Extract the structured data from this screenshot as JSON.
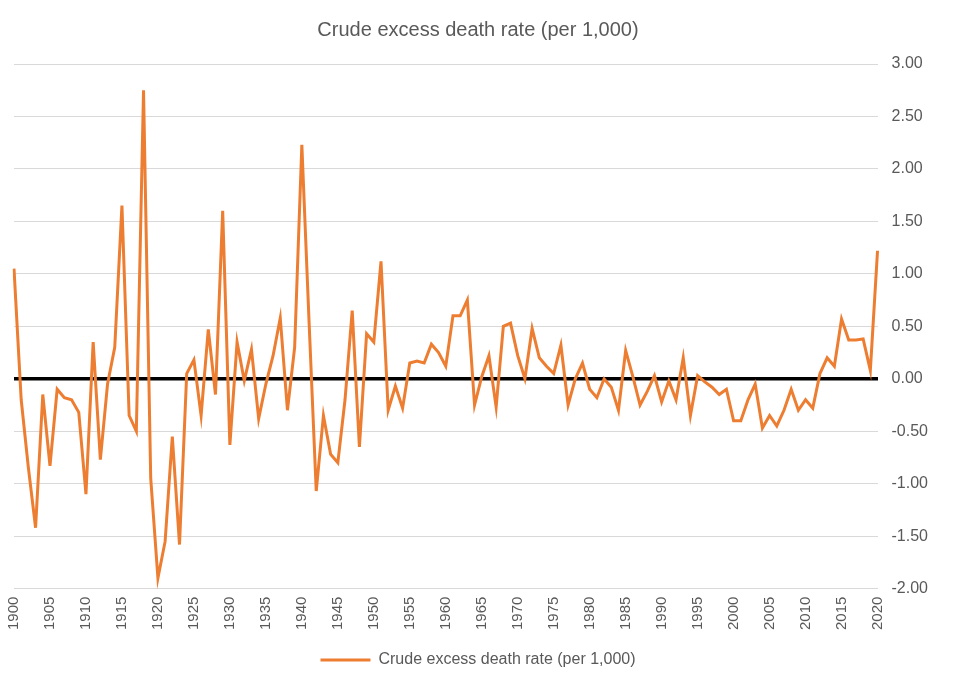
{
  "chart_data": {
    "type": "line",
    "title": "Crude excess death rate (per 1,000)",
    "categories": [
      "1900",
      null,
      null,
      null,
      null,
      "1905",
      null,
      null,
      null,
      null,
      "1910",
      null,
      null,
      null,
      null,
      "1915",
      null,
      null,
      null,
      null,
      "1920",
      null,
      null,
      null,
      null,
      "1925",
      null,
      null,
      null,
      null,
      "1930",
      null,
      null,
      null,
      null,
      "1935",
      null,
      null,
      null,
      null,
      "1940",
      null,
      null,
      null,
      null,
      "1945",
      null,
      null,
      null,
      null,
      "1950",
      null,
      null,
      null,
      null,
      "1955",
      null,
      null,
      null,
      null,
      "1960",
      null,
      null,
      null,
      null,
      "1965",
      null,
      null,
      null,
      null,
      "1970",
      null,
      null,
      null,
      null,
      "1975",
      null,
      null,
      null,
      null,
      "1980",
      null,
      null,
      null,
      null,
      "1985",
      null,
      null,
      null,
      null,
      "1990",
      null,
      null,
      null,
      null,
      "1995",
      null,
      null,
      null,
      null,
      "2000",
      null,
      null,
      null,
      null,
      "2005",
      null,
      null,
      null,
      null,
      "2010",
      null,
      null,
      null,
      null,
      "2015",
      null,
      null,
      null,
      null,
      "2020"
    ],
    "series": [
      {
        "name": "Crude excess death rate (per 1,000)",
        "color": "#ed7d31",
        "values": [
          1.05,
          -0.2,
          -0.85,
          -1.42,
          -0.15,
          -0.83,
          -0.1,
          -0.18,
          -0.2,
          -0.32,
          -1.1,
          0.35,
          -0.77,
          -0.05,
          0.3,
          1.65,
          -0.35,
          -0.5,
          2.75,
          -0.95,
          -1.9,
          -1.55,
          -0.55,
          -1.58,
          0.05,
          0.18,
          -0.35,
          0.47,
          -0.15,
          1.6,
          -0.63,
          0.35,
          -0.02,
          0.28,
          -0.38,
          -0.05,
          0.22,
          0.58,
          -0.3,
          0.3,
          2.23,
          0.55,
          -1.07,
          -0.35,
          -0.72,
          -0.8,
          -0.2,
          0.65,
          -0.65,
          0.43,
          0.35,
          1.12,
          -0.3,
          -0.07,
          -0.28,
          0.15,
          0.17,
          0.15,
          0.33,
          0.25,
          0.12,
          0.6,
          0.6,
          0.75,
          -0.25,
          0.02,
          0.22,
          -0.27,
          0.5,
          0.53,
          0.22,
          0.0,
          0.48,
          0.2,
          0.12,
          0.05,
          0.32,
          -0.25,
          0.0,
          0.15,
          -0.1,
          -0.18,
          0.0,
          -0.08,
          -0.3,
          0.27,
          0.02,
          -0.25,
          -0.12,
          0.03,
          -0.22,
          -0.02,
          -0.2,
          0.2,
          -0.35,
          0.03,
          -0.03,
          -0.08,
          -0.15,
          -0.1,
          -0.4,
          -0.4,
          -0.2,
          -0.05,
          -0.47,
          -0.35,
          -0.45,
          -0.3,
          -0.1,
          -0.3,
          -0.2,
          -0.28,
          0.05,
          0.2,
          0.12,
          0.57,
          0.37,
          0.37,
          0.38,
          0.08,
          1.22
        ]
      }
    ],
    "ylim": [
      -2,
      3
    ],
    "yticks": [
      {
        "value": -2,
        "label": "-2.00"
      },
      {
        "value": -1.5,
        "label": "-1.50"
      },
      {
        "value": -1,
        "label": "-1.00"
      },
      {
        "value": -0.5,
        "label": "-0.50"
      },
      {
        "value": 0,
        "label": "0.00"
      },
      {
        "value": 0.5,
        "label": "0.50"
      },
      {
        "value": 1,
        "label": "1.00"
      },
      {
        "value": 1.5,
        "label": "1.50"
      },
      {
        "value": 2,
        "label": "2.00"
      },
      {
        "value": 2.5,
        "label": "2.50"
      },
      {
        "value": 3,
        "label": "3.00"
      }
    ],
    "grid": true,
    "legend": "bottom"
  }
}
